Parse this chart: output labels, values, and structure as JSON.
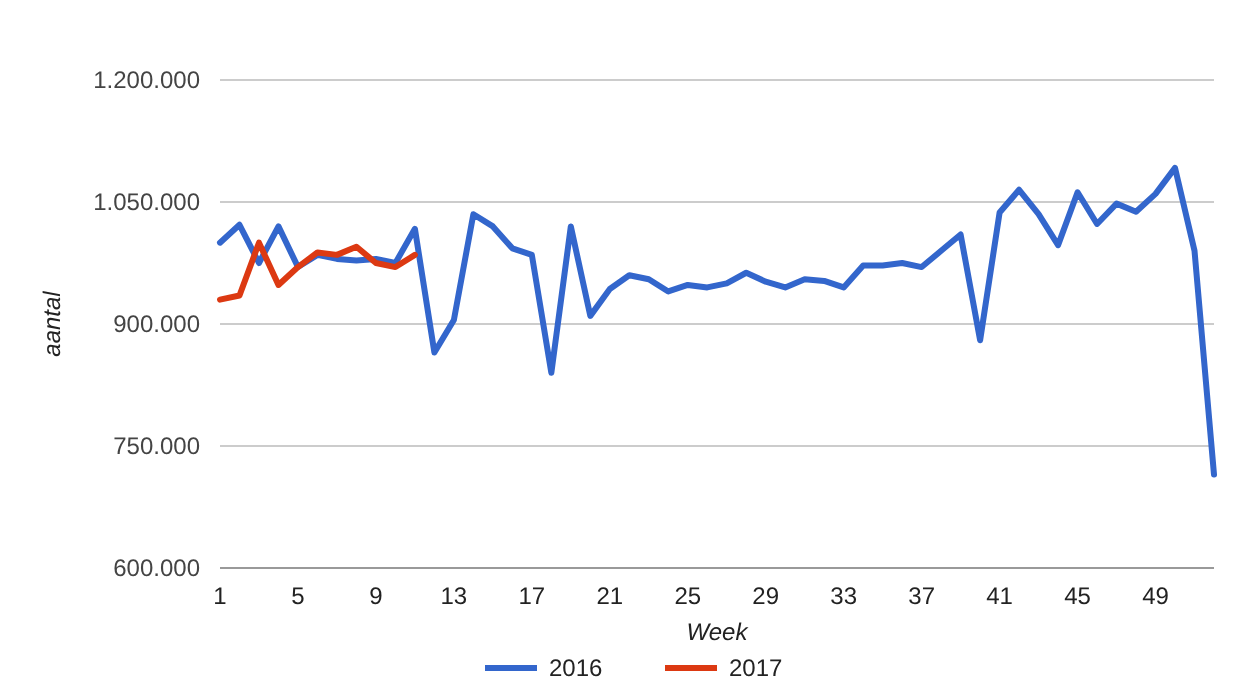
{
  "chart_data": {
    "type": "line",
    "xlabel": "Week",
    "ylabel": "aantal",
    "xlim": [
      1,
      52
    ],
    "xticks": [
      1,
      5,
      9,
      13,
      17,
      21,
      25,
      29,
      33,
      37,
      41,
      45,
      49
    ],
    "ylim": [
      600000,
      1200000
    ],
    "yticks": [
      {
        "value": 600000,
        "label": "600.000"
      },
      {
        "value": 750000,
        "label": "750.000"
      },
      {
        "value": 900000,
        "label": "900.000"
      },
      {
        "value": 1050000,
        "label": "1.050.000"
      },
      {
        "value": 1200000,
        "label": "1.200.000"
      }
    ],
    "grid": "y",
    "legend": "bottom",
    "marker": "none",
    "line_style": "solid",
    "series": [
      {
        "name": "2016",
        "color": "#3366cc",
        "x": [
          1,
          2,
          3,
          4,
          5,
          6,
          7,
          8,
          9,
          10,
          11,
          12,
          13,
          14,
          15,
          16,
          17,
          18,
          19,
          20,
          21,
          22,
          23,
          24,
          25,
          26,
          27,
          28,
          29,
          30,
          31,
          32,
          33,
          34,
          35,
          36,
          37,
          38,
          39,
          40,
          41,
          42,
          43,
          44,
          45,
          46,
          47,
          48,
          49,
          50,
          51,
          52
        ],
        "values": [
          1000000,
          1022000,
          975000,
          1020000,
          970000,
          985000,
          980000,
          978000,
          980000,
          975000,
          1017000,
          865000,
          905000,
          1035000,
          1020000,
          993000,
          985000,
          840000,
          1020000,
          910000,
          943000,
          960000,
          955000,
          940000,
          948000,
          945000,
          950000,
          963000,
          952000,
          945000,
          955000,
          953000,
          945000,
          972000,
          972000,
          975000,
          970000,
          990000,
          1010000,
          880000,
          1037000,
          1065000,
          1035000,
          997000,
          1062000,
          1023000,
          1048000,
          1038000,
          1060000,
          1092000,
          990000,
          715000
        ]
      },
      {
        "name": "2017",
        "color": "#dc3912",
        "x": [
          1,
          2,
          3,
          4,
          5,
          6,
          7,
          8,
          9,
          10,
          11
        ],
        "values": [
          930000,
          935000,
          1000000,
          948000,
          970000,
          988000,
          985000,
          995000,
          975000,
          970000,
          985000
        ]
      }
    ]
  }
}
